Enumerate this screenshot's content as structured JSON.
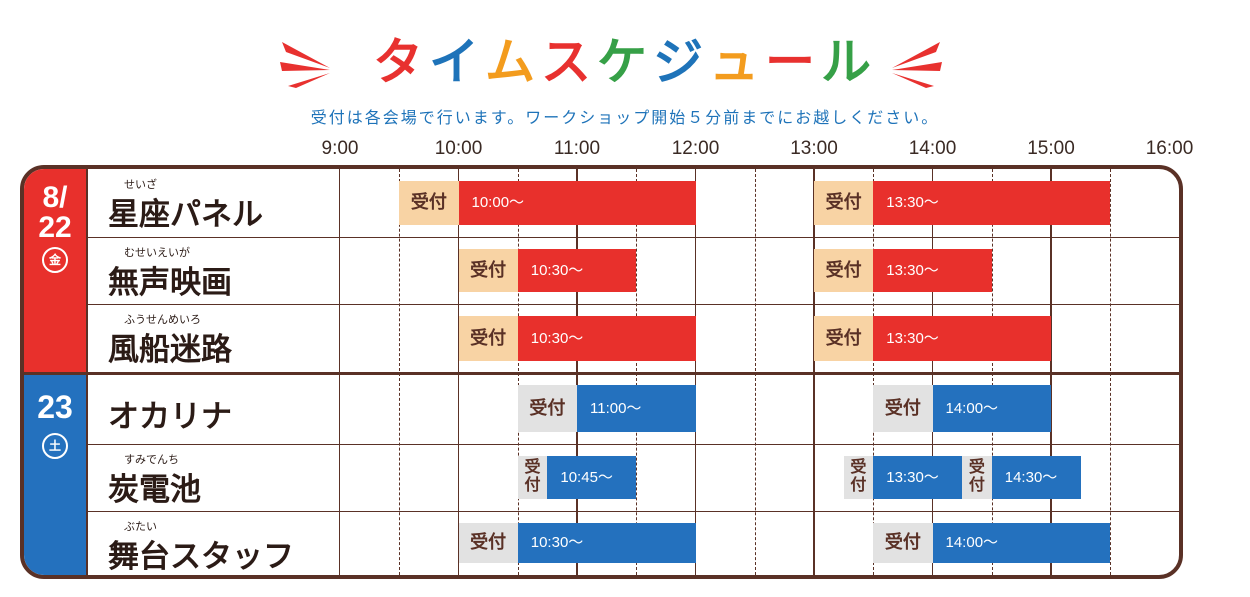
{
  "title": "タイムスケジュール",
  "title_colors": [
    "#e8312f",
    "#1e73b9",
    "#f39c1e",
    "#e8312f",
    "#36a047",
    "#1e73b9",
    "#f39c1e",
    "#e8312f",
    "#36a047"
  ],
  "notice": "受付は各会場で行います。ワークショップ開始５分前までにお越しください。",
  "times": [
    "9:00",
    "10:00",
    "11:00",
    "12:00",
    "13:00",
    "14:00",
    "15:00",
    "16:00"
  ],
  "colors": {
    "red": "#e8302c",
    "blue": "#2471be",
    "peach": "#f8d3a4",
    "gray": "#e2e2e2",
    "frame": "#5a3126"
  },
  "days": [
    {
      "date_top": "8/",
      "date_bottom": "22",
      "weekday": "金",
      "color": "red"
    },
    {
      "date_top": "23",
      "date_bottom": "",
      "weekday": "土",
      "color": "blue"
    }
  ],
  "reception_label": "受付",
  "rows": [
    {
      "ruby": "せいざ",
      "name": "星座パネル",
      "day": 0,
      "sessions": [
        {
          "rec_start": 9.5,
          "start": 10.0,
          "end": 12.0,
          "label": "10:00～"
        },
        {
          "rec_start": 13.0,
          "start": 13.5,
          "end": 15.5,
          "label": "13:30～"
        }
      ]
    },
    {
      "ruby": "むせいえいが",
      "name": "無声映画",
      "day": 0,
      "sessions": [
        {
          "rec_start": 10.0,
          "start": 10.5,
          "end": 11.5,
          "label": "10:30～"
        },
        {
          "rec_start": 13.0,
          "start": 13.5,
          "end": 14.5,
          "label": "13:30～"
        }
      ]
    },
    {
      "ruby": "ふうせんめいろ",
      "name": "風船迷路",
      "day": 0,
      "sessions": [
        {
          "rec_start": 10.0,
          "start": 10.5,
          "end": 12.0,
          "label": "10:30～"
        },
        {
          "rec_start": 13.0,
          "start": 13.5,
          "end": 15.0,
          "label": "13:30～"
        }
      ]
    },
    {
      "ruby": "",
      "name": "オカリナ",
      "day": 1,
      "sessions": [
        {
          "rec_start": 10.5,
          "start": 11.0,
          "end": 12.0,
          "label": "11:00～"
        },
        {
          "rec_start": 13.5,
          "start": 14.0,
          "end": 15.0,
          "label": "14:00～"
        }
      ]
    },
    {
      "ruby": "すみでんち",
      "name": "炭電池",
      "day": 1,
      "sessions": [
        {
          "rec_start": 10.5,
          "start": 10.75,
          "end": 11.5,
          "label": "10:45～",
          "vertical": true
        },
        {
          "rec_start": 13.25,
          "start": 13.5,
          "end": 14.25,
          "label": "13:30～",
          "vertical": true
        },
        {
          "rec_start": 14.25,
          "start": 14.5,
          "end": 15.25,
          "label": "14:30～",
          "vertical": true
        }
      ]
    },
    {
      "ruby": "ぶたい",
      "name": "舞台スタッフ",
      "day": 1,
      "sessions": [
        {
          "rec_start": 10.0,
          "start": 10.5,
          "end": 12.0,
          "label": "10:30～"
        },
        {
          "rec_start": 13.5,
          "start": 14.0,
          "end": 15.5,
          "label": "14:00～"
        }
      ]
    }
  ]
}
